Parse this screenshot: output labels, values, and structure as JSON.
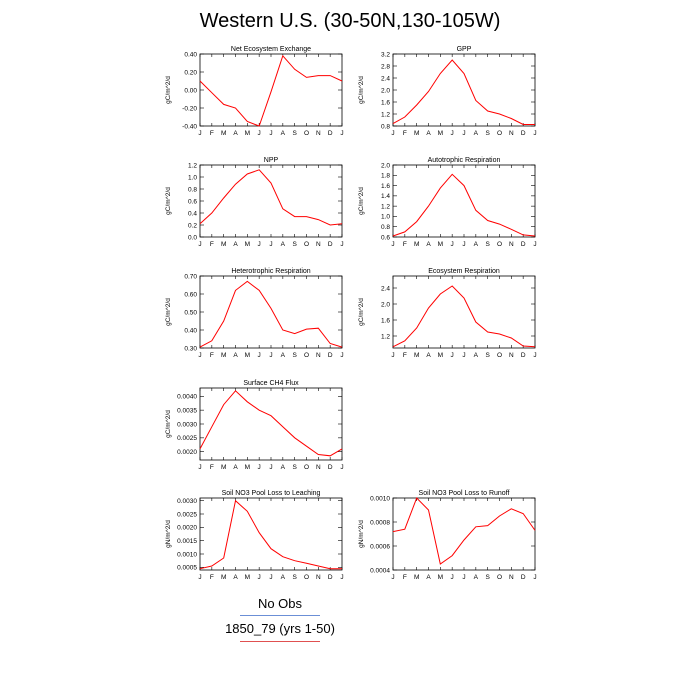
{
  "title": "Western U.S. (30-50N,130-105W)",
  "legend": {
    "obs_label": "No Obs",
    "model_label": "1850_79 (yrs 1-50)",
    "obs_color": "#6b8fd6",
    "model_color": "#e05050"
  },
  "chart_data": [
    {
      "type": "line",
      "title": "Net Ecosystem Exchange",
      "ylabel": "gC/m^2/d",
      "x": [
        "J",
        "F",
        "M",
        "A",
        "M",
        "J",
        "J",
        "A",
        "S",
        "O",
        "N",
        "D",
        "J"
      ],
      "ylim": [
        -0.4,
        0.4
      ],
      "yticks": [
        "-0.40",
        "-0.20",
        "0.00",
        "0.20",
        "0.40"
      ],
      "yticks_values": [
        -0.4,
        -0.2,
        0.0,
        0.2,
        0.4
      ],
      "series": [
        {
          "color": "#ff0000",
          "values": [
            0.1,
            -0.03,
            -0.16,
            -0.2,
            -0.35,
            -0.4,
            -0.02,
            0.38,
            0.23,
            0.14,
            0.16,
            0.16,
            0.1
          ]
        }
      ]
    },
    {
      "type": "line",
      "title": "GPP",
      "ylabel": "gC/m^2/d",
      "x": [
        "J",
        "F",
        "M",
        "A",
        "M",
        "J",
        "J",
        "A",
        "S",
        "O",
        "N",
        "D",
        "J"
      ],
      "ylim": [
        0.8,
        3.2
      ],
      "yticks": [
        "0.8",
        "1.2",
        "1.6",
        "2.0",
        "2.4",
        "2.8",
        "3.2"
      ],
      "yticks_values": [
        0.8,
        1.2,
        1.6,
        2.0,
        2.4,
        2.8,
        3.2
      ],
      "series": [
        {
          "color": "#ff0000",
          "values": [
            0.88,
            1.1,
            1.5,
            1.95,
            2.55,
            3.0,
            2.55,
            1.65,
            1.3,
            1.2,
            1.05,
            0.85,
            0.85
          ]
        }
      ]
    },
    {
      "type": "line",
      "title": "NPP",
      "ylabel": "gC/m^2/d",
      "x": [
        "J",
        "F",
        "M",
        "A",
        "M",
        "J",
        "J",
        "A",
        "S",
        "O",
        "N",
        "D",
        "J"
      ],
      "ylim": [
        0.0,
        1.2
      ],
      "yticks": [
        "0.0",
        "0.2",
        "0.4",
        "0.6",
        "0.8",
        "1.0",
        "1.2"
      ],
      "yticks_values": [
        0.0,
        0.2,
        0.4,
        0.6,
        0.8,
        1.0,
        1.2
      ],
      "series": [
        {
          "color": "#ff0000",
          "values": [
            0.22,
            0.4,
            0.65,
            0.88,
            1.05,
            1.12,
            0.9,
            0.47,
            0.34,
            0.34,
            0.29,
            0.2,
            0.22
          ]
        }
      ]
    },
    {
      "type": "line",
      "title": "Autotrophic Respiration",
      "ylabel": "gC/m^2/d",
      "x": [
        "J",
        "F",
        "M",
        "A",
        "M",
        "J",
        "J",
        "A",
        "S",
        "O",
        "N",
        "D",
        "J"
      ],
      "ylim": [
        0.6,
        2.0
      ],
      "yticks": [
        "0.6",
        "0.8",
        "1.0",
        "1.2",
        "1.4",
        "1.6",
        "1.8",
        "2.0"
      ],
      "yticks_values": [
        0.6,
        0.8,
        1.0,
        1.2,
        1.4,
        1.6,
        1.8,
        2.0
      ],
      "series": [
        {
          "color": "#ff0000",
          "values": [
            0.62,
            0.7,
            0.9,
            1.2,
            1.55,
            1.82,
            1.6,
            1.12,
            0.92,
            0.85,
            0.75,
            0.64,
            0.62
          ]
        }
      ]
    },
    {
      "type": "line",
      "title": "Heterotrophic Respiration",
      "ylabel": "gC/m^2/d",
      "x": [
        "J",
        "F",
        "M",
        "A",
        "M",
        "J",
        "J",
        "A",
        "S",
        "O",
        "N",
        "D",
        "J"
      ],
      "ylim": [
        0.3,
        0.7
      ],
      "yticks": [
        "0.30",
        "0.40",
        "0.50",
        "0.60",
        "0.70"
      ],
      "yticks_values": [
        0.3,
        0.4,
        0.5,
        0.6,
        0.7
      ],
      "series": [
        {
          "color": "#ff0000",
          "values": [
            0.305,
            0.34,
            0.45,
            0.62,
            0.67,
            0.62,
            0.52,
            0.4,
            0.38,
            0.405,
            0.41,
            0.325,
            0.305
          ]
        }
      ]
    },
    {
      "type": "line",
      "title": "Ecosystem Respiration",
      "ylabel": "gC/m^2/d",
      "x": [
        "J",
        "F",
        "M",
        "A",
        "M",
        "J",
        "J",
        "A",
        "S",
        "O",
        "N",
        "D",
        "J"
      ],
      "ylim": [
        0.9,
        2.7
      ],
      "yticks": [
        "1.2",
        "1.6",
        "2.0",
        "2.4"
      ],
      "yticks_values": [
        1.2,
        1.6,
        2.0,
        2.4
      ],
      "series": [
        {
          "color": "#ff0000",
          "values": [
            0.93,
            1.08,
            1.4,
            1.9,
            2.25,
            2.45,
            2.15,
            1.55,
            1.3,
            1.25,
            1.15,
            0.95,
            0.93
          ]
        }
      ]
    },
    {
      "type": "line",
      "title": "Surface CH4 Flux",
      "ylabel": "gC/m^2/d",
      "x": [
        "J",
        "F",
        "M",
        "A",
        "M",
        "J",
        "J",
        "A",
        "S",
        "O",
        "N",
        "D",
        "J"
      ],
      "ylim": [
        0.0017,
        0.0043
      ],
      "yticks": [
        "0.0020",
        "0.0025",
        "0.0030",
        "0.0035",
        "0.0040"
      ],
      "yticks_values": [
        0.002,
        0.0025,
        0.003,
        0.0035,
        0.004
      ],
      "series": [
        {
          "color": "#ff0000",
          "values": [
            0.0021,
            0.0029,
            0.0037,
            0.0042,
            0.0038,
            0.0035,
            0.0033,
            0.0029,
            0.0025,
            0.0022,
            0.0019,
            0.00185,
            0.0021
          ]
        }
      ]
    },
    {
      "type": "line",
      "title": "Soil NO3 Pool Loss to Leaching",
      "ylabel": "gN/m^2/d",
      "x": [
        "J",
        "F",
        "M",
        "A",
        "M",
        "J",
        "J",
        "A",
        "S",
        "O",
        "N",
        "D",
        "J"
      ],
      "ylim": [
        0.0004,
        0.0031
      ],
      "yticks": [
        "0.0005",
        "0.0010",
        "0.0015",
        "0.0020",
        "0.0025",
        "0.0030"
      ],
      "yticks_values": [
        0.0005,
        0.001,
        0.0015,
        0.002,
        0.0025,
        0.003
      ],
      "series": [
        {
          "color": "#ff0000",
          "values": [
            0.00045,
            0.00055,
            0.00085,
            0.003,
            0.0026,
            0.0018,
            0.0012,
            0.0009,
            0.00075,
            0.00065,
            0.00055,
            0.00045,
            0.00045
          ]
        }
      ]
    },
    {
      "type": "line",
      "title": "Soil NO3 Pool Loss to Runoff",
      "ylabel": "gN/m^2/d",
      "x": [
        "J",
        "F",
        "M",
        "A",
        "M",
        "J",
        "J",
        "A",
        "S",
        "O",
        "N",
        "D",
        "J"
      ],
      "ylim": [
        0.0004,
        0.001
      ],
      "yticks": [
        "0.0004",
        "0.0006",
        "0.0008",
        "0.0010"
      ],
      "yticks_values": [
        0.0004,
        0.0006,
        0.0008,
        0.001
      ],
      "series": [
        {
          "color": "#ff0000",
          "values": [
            0.00072,
            0.00074,
            0.001,
            0.0009,
            0.00045,
            0.00052,
            0.00065,
            0.00076,
            0.00077,
            0.00085,
            0.00091,
            0.00087,
            0.00073
          ]
        }
      ]
    }
  ]
}
